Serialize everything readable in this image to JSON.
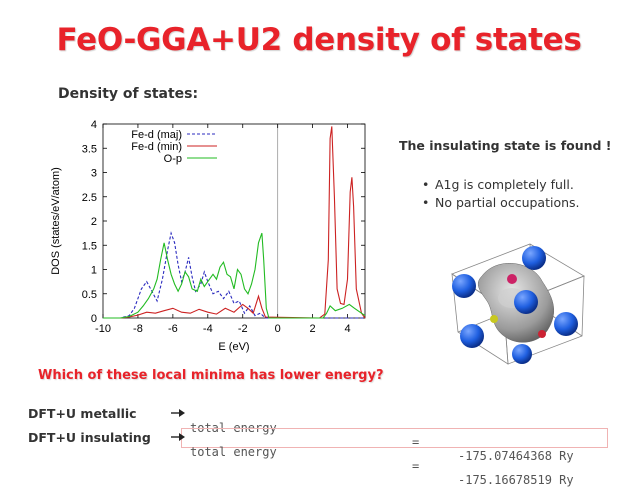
{
  "slide": {
    "title": "FeO-GGA+U2 density of states",
    "dos_heading": "Density of states:",
    "insulating_note": "The insulating state is found !",
    "bullets": [
      "A1g is completely full.",
      "No partial occupations."
    ],
    "question": "Which of these local minima has lower energy?",
    "energies": [
      {
        "label": "DFT+U metallic",
        "quantity": "total energy",
        "eq": "=",
        "value": "-175.07464368 Ry"
      },
      {
        "label": "DFT+U insulating",
        "quantity": "total energy",
        "eq": "=",
        "value": "-175.16678519 Ry"
      }
    ],
    "colors": {
      "title": "#e8232a",
      "question": "#e8232a",
      "text": "#333333",
      "box": "#f0b3b3"
    }
  },
  "chart_data": {
    "type": "line",
    "xlabel": "E (eV)",
    "ylabel": "DOS (states/eV/atom)",
    "xlim": [
      -10,
      5
    ],
    "ylim": [
      0,
      4
    ],
    "xticks": [
      "-10",
      "-8",
      "-6",
      "-4",
      "-2",
      "0",
      "2",
      "4"
    ],
    "yticks": [
      "0",
      "0.5",
      "1",
      "1.5",
      "2",
      "2.5",
      "3",
      "3.5",
      "4"
    ],
    "grid": false,
    "legend_position": "top-left",
    "fermi_level": 0,
    "series": [
      {
        "name": "Fe-d (maj)",
        "color": "#2b2bbf",
        "style": "dashed",
        "points": [
          [
            -10,
            0
          ],
          [
            -9,
            0
          ],
          [
            -8.5,
            0.05
          ],
          [
            -8.2,
            0.2
          ],
          [
            -7.8,
            0.6
          ],
          [
            -7.5,
            0.75
          ],
          [
            -7.2,
            0.55
          ],
          [
            -6.9,
            0.35
          ],
          [
            -6.6,
            0.8
          ],
          [
            -6.3,
            1.4
          ],
          [
            -6.1,
            1.75
          ],
          [
            -5.9,
            1.55
          ],
          [
            -5.7,
            1.1
          ],
          [
            -5.5,
            0.75
          ],
          [
            -5.3,
            0.95
          ],
          [
            -5.1,
            1.25
          ],
          [
            -4.9,
            0.85
          ],
          [
            -4.7,
            0.55
          ],
          [
            -4.4,
            0.7
          ],
          [
            -4.2,
            0.95
          ],
          [
            -4.0,
            0.75
          ],
          [
            -3.7,
            0.5
          ],
          [
            -3.4,
            0.55
          ],
          [
            -3.1,
            0.4
          ],
          [
            -2.8,
            0.55
          ],
          [
            -2.5,
            0.3
          ],
          [
            -2.2,
            0.35
          ],
          [
            -1.9,
            0.1
          ],
          [
            -1.6,
            0.25
          ],
          [
            -1.3,
            0.05
          ],
          [
            -1.0,
            0.1
          ],
          [
            -0.7,
            0
          ],
          [
            0,
            0
          ],
          [
            5,
            0
          ]
        ]
      },
      {
        "name": "Fe-d (min)",
        "color": "#cc2222",
        "style": "solid",
        "points": [
          [
            -10,
            0
          ],
          [
            -9,
            0
          ],
          [
            -8.5,
            0.02
          ],
          [
            -8,
            0.06
          ],
          [
            -7.5,
            0.12
          ],
          [
            -7,
            0.1
          ],
          [
            -6.5,
            0.15
          ],
          [
            -6,
            0.2
          ],
          [
            -5.5,
            0.12
          ],
          [
            -5,
            0.1
          ],
          [
            -4.5,
            0.18
          ],
          [
            -4,
            0.12
          ],
          [
            -3.5,
            0.08
          ],
          [
            -3,
            0.2
          ],
          [
            -2.5,
            0.12
          ],
          [
            -2,
            0.28
          ],
          [
            -1.7,
            0.2
          ],
          [
            -1.4,
            0.1
          ],
          [
            -1.1,
            0.45
          ],
          [
            -0.9,
            0.2
          ],
          [
            -0.7,
            0.02
          ],
          [
            2.4,
            0
          ],
          [
            2.7,
            0.08
          ],
          [
            2.9,
            1.2
          ],
          [
            3.0,
            3.7
          ],
          [
            3.1,
            3.95
          ],
          [
            3.25,
            2.5
          ],
          [
            3.4,
            0.6
          ],
          [
            3.6,
            0.3
          ],
          [
            3.8,
            0.28
          ],
          [
            4.0,
            0.8
          ],
          [
            4.15,
            2.6
          ],
          [
            4.25,
            2.9
          ],
          [
            4.35,
            2.3
          ],
          [
            4.5,
            0.6
          ],
          [
            4.8,
            0.1
          ],
          [
            5,
            0
          ]
        ]
      },
      {
        "name": "O-p",
        "color": "#22bb22",
        "style": "solid",
        "points": [
          [
            -10,
            0
          ],
          [
            -9,
            0
          ],
          [
            -8.5,
            0.03
          ],
          [
            -8.0,
            0.12
          ],
          [
            -7.7,
            0.25
          ],
          [
            -7.4,
            0.4
          ],
          [
            -7.1,
            0.6
          ],
          [
            -6.9,
            0.8
          ],
          [
            -6.7,
            1.2
          ],
          [
            -6.5,
            1.55
          ],
          [
            -6.3,
            1.2
          ],
          [
            -6.1,
            0.9
          ],
          [
            -5.9,
            0.7
          ],
          [
            -5.7,
            0.55
          ],
          [
            -5.5,
            0.7
          ],
          [
            -5.3,
            0.95
          ],
          [
            -5.1,
            0.85
          ],
          [
            -4.9,
            0.6
          ],
          [
            -4.6,
            0.55
          ],
          [
            -4.4,
            0.8
          ],
          [
            -4.2,
            0.65
          ],
          [
            -3.9,
            0.8
          ],
          [
            -3.7,
            0.9
          ],
          [
            -3.5,
            0.8
          ],
          [
            -3.3,
            1.05
          ],
          [
            -3.1,
            1.15
          ],
          [
            -2.9,
            0.9
          ],
          [
            -2.7,
            0.85
          ],
          [
            -2.5,
            0.6
          ],
          [
            -2.3,
            1.0
          ],
          [
            -2.1,
            0.9
          ],
          [
            -1.9,
            0.6
          ],
          [
            -1.7,
            0.5
          ],
          [
            -1.5,
            0.7
          ],
          [
            -1.3,
            1.0
          ],
          [
            -1.1,
            1.55
          ],
          [
            -0.9,
            1.75
          ],
          [
            -0.8,
            1.2
          ],
          [
            -0.65,
            0.2
          ],
          [
            -0.5,
            0
          ],
          [
            2.6,
            0
          ],
          [
            2.8,
            0.1
          ],
          [
            3.0,
            0.25
          ],
          [
            3.3,
            0.15
          ],
          [
            3.7,
            0.2
          ],
          [
            4.1,
            0.28
          ],
          [
            4.4,
            0.2
          ],
          [
            4.8,
            0.1
          ],
          [
            5,
            0.05
          ]
        ]
      }
    ]
  }
}
